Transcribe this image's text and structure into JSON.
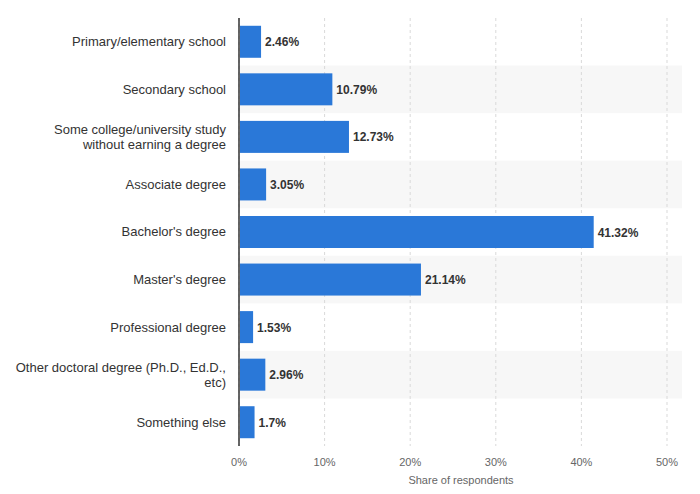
{
  "chart_data": {
    "type": "bar",
    "orientation": "horizontal",
    "categories": [
      "Primary/elementary school",
      "Secondary school",
      "Some college/university study without earning a degree",
      "Associate degree",
      "Bachelor's degree",
      "Master's degree",
      "Professional degree",
      "Other doctoral degree (Ph.D., Ed.D., etc)",
      "Something else"
    ],
    "values": [
      2.46,
      10.79,
      12.73,
      3.05,
      41.32,
      21.14,
      1.53,
      2.96,
      1.7
    ],
    "value_labels": [
      "2.46%",
      "10.79%",
      "12.73%",
      "3.05%",
      "41.32%",
      "21.14%",
      "1.53%",
      "2.96%",
      "1.7%"
    ],
    "data_labels": true,
    "color": "#2a78d8",
    "xlabel": "Share of respondents",
    "xlim": [
      0,
      50
    ],
    "xticks": [
      {
        "value": 0,
        "label": "0%"
      },
      {
        "value": 10,
        "label": "10%"
      },
      {
        "value": 20,
        "label": "20%"
      },
      {
        "value": 30,
        "label": "30%"
      },
      {
        "value": 40,
        "label": "40%"
      },
      {
        "value": 50,
        "label": "50%"
      }
    ],
    "grid": true
  }
}
